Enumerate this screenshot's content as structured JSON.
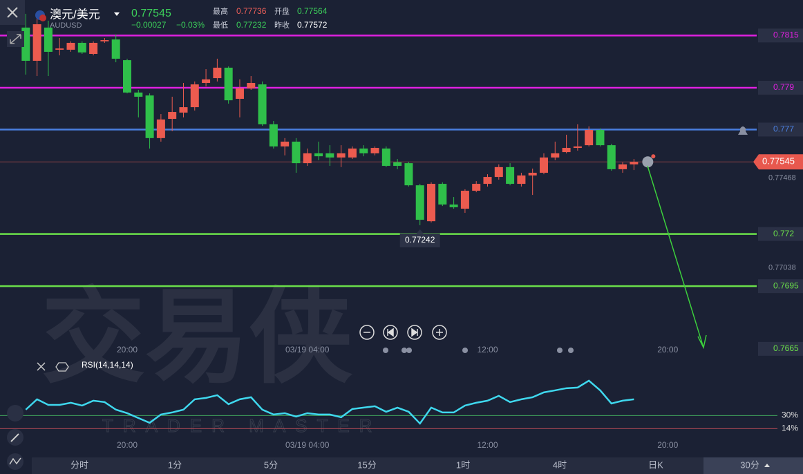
{
  "header": {
    "symbol_name": "澳元/美元",
    "symbol_code": "AUDUSD",
    "price": 0.77545,
    "change": "−0.00027",
    "change_pct": "−0.03%",
    "stats": [
      {
        "label": "最高",
        "value": 0.77736
      },
      {
        "label": "开盘",
        "value": 0.77564
      },
      {
        "label": "最低",
        "value": 0.77232
      },
      {
        "label": "昨收",
        "value": 0.77572
      }
    ]
  },
  "chart_data": {
    "type": "candlestick",
    "open": [
      0.78188,
      0.78029,
      0.78188,
      0.78082,
      0.78082,
      0.78115,
      0.78062,
      0.78122,
      0.78131,
      0.78032,
      0.77877,
      0.77863,
      0.77659,
      0.77751,
      0.77781,
      0.77807,
      0.77923,
      0.77946,
      0.77996,
      0.77847,
      0.77897,
      0.77916,
      0.77725,
      0.77619,
      0.77642,
      0.77539,
      0.77586,
      0.77586,
      0.77566,
      0.77566,
      0.77609,
      0.77586,
      0.77609,
      0.77543,
      0.77539,
      0.77433,
      0.77261,
      0.7744,
      0.77341,
      0.77321,
      0.77407,
      0.7744,
      0.77473,
      0.7752,
      0.7744,
      0.7748,
      0.77493,
      0.77566,
      0.77592,
      0.77612,
      0.77625,
      0.77698,
      0.77625,
      0.7751,
      0.77533
    ],
    "high": [
      0.78254,
      0.78254,
      0.78221,
      0.78138,
      0.78122,
      0.78122,
      0.78122,
      0.78138,
      0.78155,
      0.78039,
      0.7789,
      0.77873,
      0.77774,
      0.77857,
      0.77923,
      0.7793,
      0.77989,
      0.78039,
      0.78002,
      0.7794,
      0.77956,
      0.7793,
      0.77741,
      0.77659,
      0.77659,
      0.77609,
      0.77642,
      0.77625,
      0.77625,
      0.77619,
      0.77625,
      0.77619,
      0.77619,
      0.77559,
      0.77546,
      0.7744,
      0.77447,
      0.77447,
      0.77377,
      0.77414,
      0.77453,
      0.77486,
      0.77533,
      0.77539,
      0.77493,
      0.77513,
      0.77586,
      0.77642,
      0.77675,
      0.77725,
      0.77715,
      0.77705,
      0.77632,
      0.77543,
      0.77559
    ],
    "low": [
      0.77963,
      0.77956,
      0.77956,
      0.78055,
      0.78072,
      0.78062,
      0.78055,
      0.78115,
      0.78022,
      0.77873,
      0.77758,
      0.77609,
      0.77642,
      0.77692,
      0.77758,
      0.77791,
      0.77906,
      0.7793,
      0.77824,
      0.77758,
      0.7789,
      0.77718,
      0.77609,
      0.77576,
      0.77493,
      0.77526,
      0.77553,
      0.77526,
      0.7752,
      0.77559,
      0.77572,
      0.77576,
      0.7752,
      0.7751,
      0.77427,
      0.77242,
      0.77255,
      0.77334,
      0.77321,
      0.77301,
      0.774,
      0.77427,
      0.7746,
      0.77433,
      0.77427,
      0.77387,
      0.77486,
      0.77553,
      0.77586,
      0.77599,
      0.77619,
      0.77619,
      0.77503,
      0.77493,
      0.77506
    ],
    "close": [
      0.78029,
      0.78204,
      0.78072,
      0.78088,
      0.78115,
      0.78069,
      0.78115,
      0.78128,
      0.78039,
      0.77877,
      0.77857,
      0.77659,
      0.77748,
      0.77784,
      0.77807,
      0.77916,
      0.7794,
      0.77996,
      0.7784,
      0.77897,
      0.77923,
      0.77725,
      0.77619,
      0.77642,
      0.77539,
      0.77586,
      0.77572,
      0.77566,
      0.77586,
      0.77609,
      0.77586,
      0.77612,
      0.77526,
      0.77526,
      0.77433,
      0.77268,
      0.7744,
      0.77341,
      0.77328,
      0.77407,
      0.7744,
      0.77473,
      0.7752,
      0.7744,
      0.7748,
      0.77493,
      0.77566,
      0.77586,
      0.77612,
      0.77619,
      0.77698,
      0.77625,
      0.7751,
      0.77533,
      0.77545
    ],
    "up_color": "#ec5b4f",
    "down_color": "#2fbf4a",
    "ylim": [
      0.766,
      0.7832
    ],
    "yticks": [
      0.77468,
      0.77038
    ],
    "xlim": [
      -2.29,
      64.9
    ],
    "xticks": [
      {
        "value": 9,
        "label": "20:00"
      },
      {
        "value": 25,
        "label": "03/19 04:00"
      },
      {
        "value": 41,
        "label": "12:00"
      },
      {
        "value": 57,
        "label": "20:00"
      }
    ],
    "lines": [
      {
        "value": 0.7815,
        "color": "#e020e0"
      },
      {
        "value": 0.779,
        "color": "#e020e0"
      },
      {
        "value": 0.777,
        "color": "#4a7fe0"
      },
      {
        "value": 0.772,
        "color": "#6be04a"
      },
      {
        "value": 0.7695,
        "color": "#6be04a"
      },
      {
        "value": 0.7665,
        "color": "#6be04a"
      }
    ],
    "rsi": {
      "name": "RSI(14,14,14)",
      "color": "#3fd8ee",
      "ylim": [
        0,
        95
      ],
      "values": [
        37.1,
        49.7,
        42.9,
        42.9,
        45.5,
        42.1,
        48,
        46.3,
        37.1,
        32.8,
        26.9,
        21.1,
        31.2,
        33.7,
        37.1,
        49.7,
        51.4,
        54.7,
        43.8,
        49.7,
        52.2,
        37.1,
        31.2,
        32.8,
        28.6,
        32.8,
        31.2,
        31.2,
        27.8,
        37.9,
        39.6,
        41.3,
        34.5,
        39.6,
        34.5,
        20.2,
        39.6,
        33.7,
        33.7,
        42.1,
        45.5,
        48,
        53.9,
        46.3,
        49.7,
        52.2,
        58.1,
        60.6,
        63.2,
        64,
        72.4,
        60.6,
        44.6,
        48,
        49.7
      ],
      "levels": [
        {
          "value": 30,
          "label": "30%",
          "color": "#3fa05a"
        },
        {
          "value": 14,
          "label": "14%",
          "color": "#b04a55"
        }
      ]
    }
  },
  "tabs": [
    "分时",
    "1分",
    "5分",
    "15分",
    "1时",
    "4时",
    "日K",
    "30分"
  ],
  "watermark": {
    "cn": "交易侠",
    "en": "TRADER MASTER"
  }
}
